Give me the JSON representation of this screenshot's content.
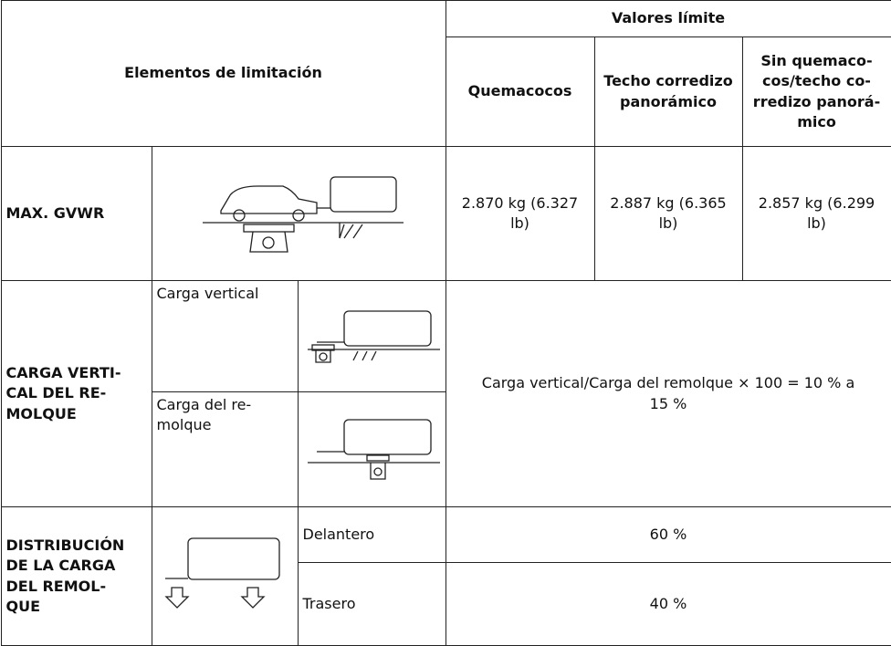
{
  "table": {
    "header": {
      "limiting_elements": "Elementos de limitación",
      "limit_values": "Valores límite",
      "columns": [
        "Quemacocos",
        "Techo corredizo\npanorámico",
        "Sin quemaco-\ncos/techo co-\nrredizo panorá-\nmico"
      ]
    },
    "rows": [
      {
        "label": "MAX. GVWR",
        "values": [
          "2.870 kg (6.327\nlb)",
          "2.887 kg (6.365\nlb)",
          "2.857 kg (6.299\nlb)"
        ]
      },
      {
        "label": "CARGA VERTI-\nCAL DEL RE-\nMOLQUE",
        "items": [
          "Carga vertical",
          "Carga del re-\nmolque"
        ],
        "value": "Carga vertical/Carga del remolque × 100 = 10 % a\n15 %"
      },
      {
        "label": "DISTRIBUCIÓN\nDE LA CARGA\nDEL REMOL-\nQUE",
        "items": [
          "Delantero",
          "Trasero"
        ],
        "values": [
          "60 %",
          "40 %"
        ]
      }
    ]
  }
}
